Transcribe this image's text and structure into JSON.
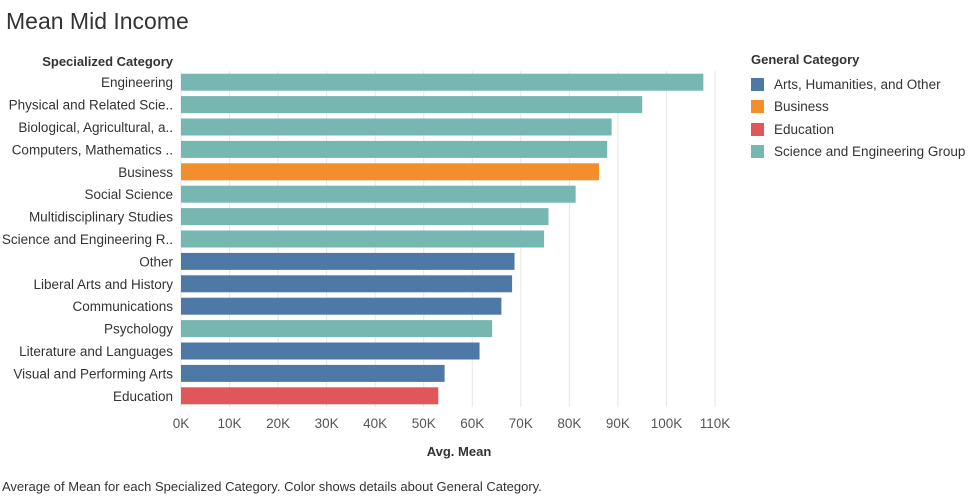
{
  "chart_data": {
    "type": "bar",
    "orientation": "horizontal",
    "title": "Mean Mid Income",
    "ylabel": "Specialized Category",
    "xlabel": "Avg. Mean",
    "xlim": [
      0,
      110000
    ],
    "x_ticks": [
      0,
      10000,
      20000,
      30000,
      40000,
      50000,
      60000,
      70000,
      80000,
      90000,
      100000,
      110000
    ],
    "x_tick_labels": [
      "0K",
      "10K",
      "20K",
      "30K",
      "40K",
      "50K",
      "60K",
      "70K",
      "80K",
      "90K",
      "100K",
      "110K"
    ],
    "grid": true,
    "legend_position": "right",
    "legend_title": "General Category",
    "caption": "Average of Mean for each Specialized Category.  Color shows details about General Category.",
    "groups": [
      {
        "name": "Arts, Humanities, and Other",
        "color": "#4e79a7"
      },
      {
        "name": "Business",
        "color": "#f28e2b"
      },
      {
        "name": "Education",
        "color": "#e15759"
      },
      {
        "name": "Science and Engineering Group",
        "color": "#76b7b2"
      }
    ],
    "categories": [
      "Engineering",
      "Physical and Related Scie..",
      "Biological, Agricultural, a..",
      "Computers, Mathematics ..",
      "Business",
      "Social Science",
      "Multidisciplinary Studies",
      "Science and Engineering R..",
      "Other",
      "Liberal Arts and History",
      "Communications",
      "Psychology",
      "Literature and Languages",
      "Visual and Performing Arts",
      "Education"
    ],
    "values": [
      107600,
      95000,
      88700,
      87800,
      86100,
      81300,
      75700,
      74800,
      68700,
      68200,
      66000,
      64100,
      61500,
      54300,
      53000
    ],
    "group_of": [
      "Science and Engineering Group",
      "Science and Engineering Group",
      "Science and Engineering Group",
      "Science and Engineering Group",
      "Business",
      "Science and Engineering Group",
      "Science and Engineering Group",
      "Science and Engineering Group",
      "Arts, Humanities, and Other",
      "Arts, Humanities, and Other",
      "Arts, Humanities, and Other",
      "Science and Engineering Group",
      "Arts, Humanities, and Other",
      "Arts, Humanities, and Other",
      "Education"
    ]
  }
}
